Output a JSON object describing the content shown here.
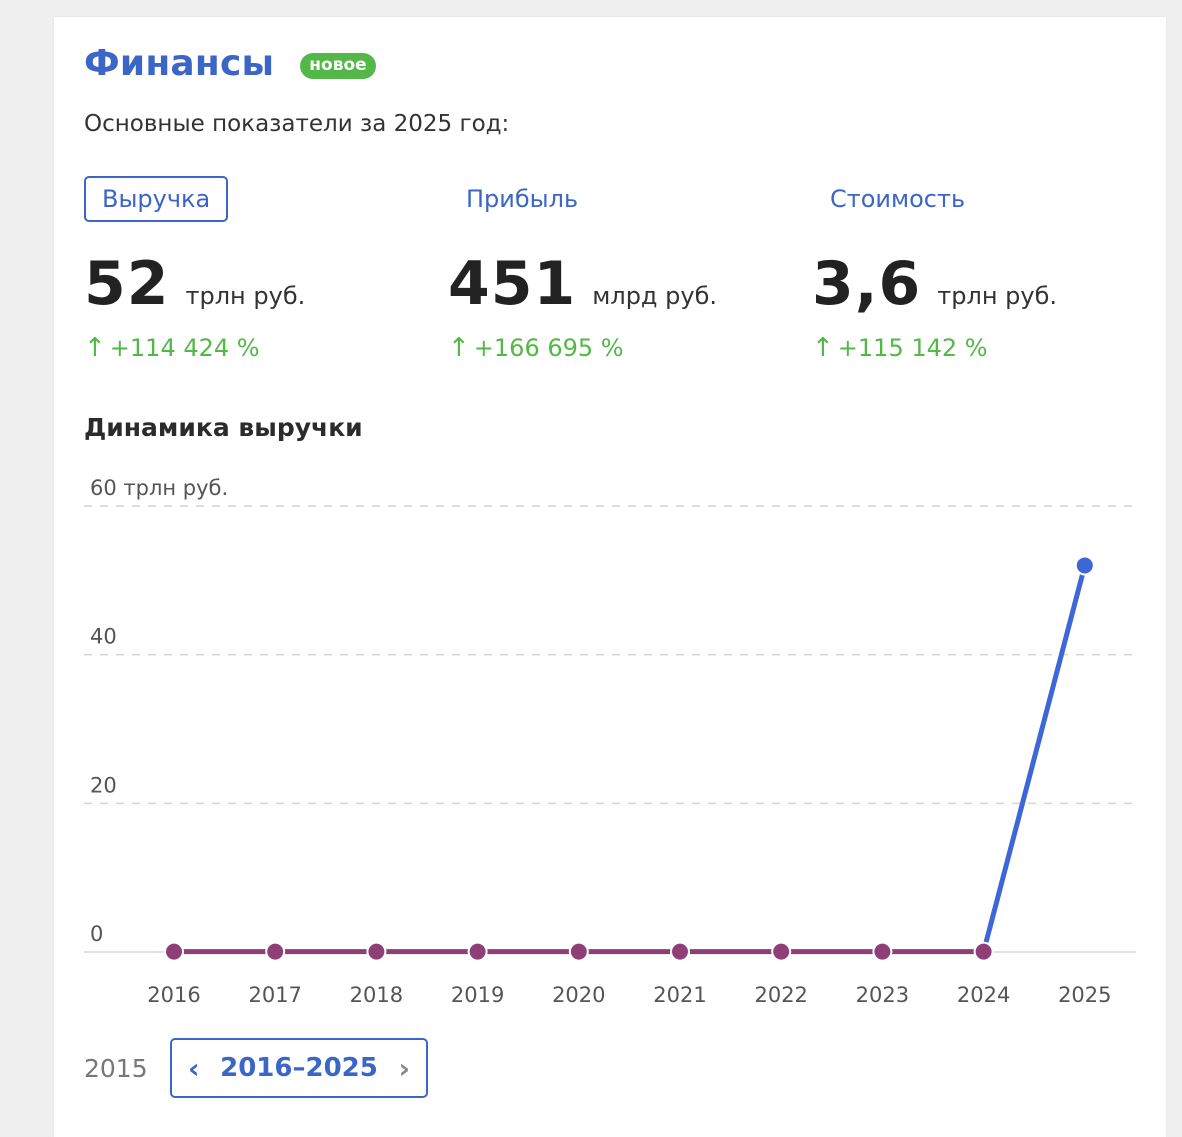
{
  "header": {
    "title": "Финансы",
    "badge": "новое",
    "subtitle": "Основные показатели за 2025 год:"
  },
  "tabs": [
    {
      "label": "Выручка",
      "active": true
    },
    {
      "label": "Прибыль",
      "active": false
    },
    {
      "label": "Стоимость",
      "active": false
    }
  ],
  "metrics": [
    {
      "value": "52",
      "unit": "трлн руб.",
      "delta": "+114 424 %"
    },
    {
      "value": "451",
      "unit": "млрд руб.",
      "delta": "+166 695 %"
    },
    {
      "value": "3,6",
      "unit": "трлн руб.",
      "delta": "+115 142 %"
    }
  ],
  "chart_section": {
    "title": "Динамика выручки"
  },
  "colors": {
    "accent": "#3b66c7",
    "positive": "#53b847",
    "line_past": "#8e3f78",
    "line_recent": "#3d67d6"
  },
  "chart_data": {
    "type": "line",
    "title": "Динамика выручки",
    "x": [
      "2016",
      "2017",
      "2018",
      "2019",
      "2020",
      "2021",
      "2022",
      "2023",
      "2024",
      "2025"
    ],
    "values": [
      0.05,
      0.05,
      0.05,
      0.05,
      0.05,
      0.05,
      0.05,
      0.05,
      0.05,
      52
    ],
    "ylim": [
      0,
      60
    ],
    "yticks": [
      {
        "value": 60,
        "label": "60 трлн руб."
      },
      {
        "value": 40,
        "label": "40"
      },
      {
        "value": 20,
        "label": "20"
      },
      {
        "value": 0,
        "label": "0"
      }
    ],
    "grid": true
  },
  "pager": {
    "prev_year": "2015",
    "range": "2016–2025",
    "prev_icon": "chevron-left-icon",
    "next_icon": "chevron-right-icon"
  }
}
